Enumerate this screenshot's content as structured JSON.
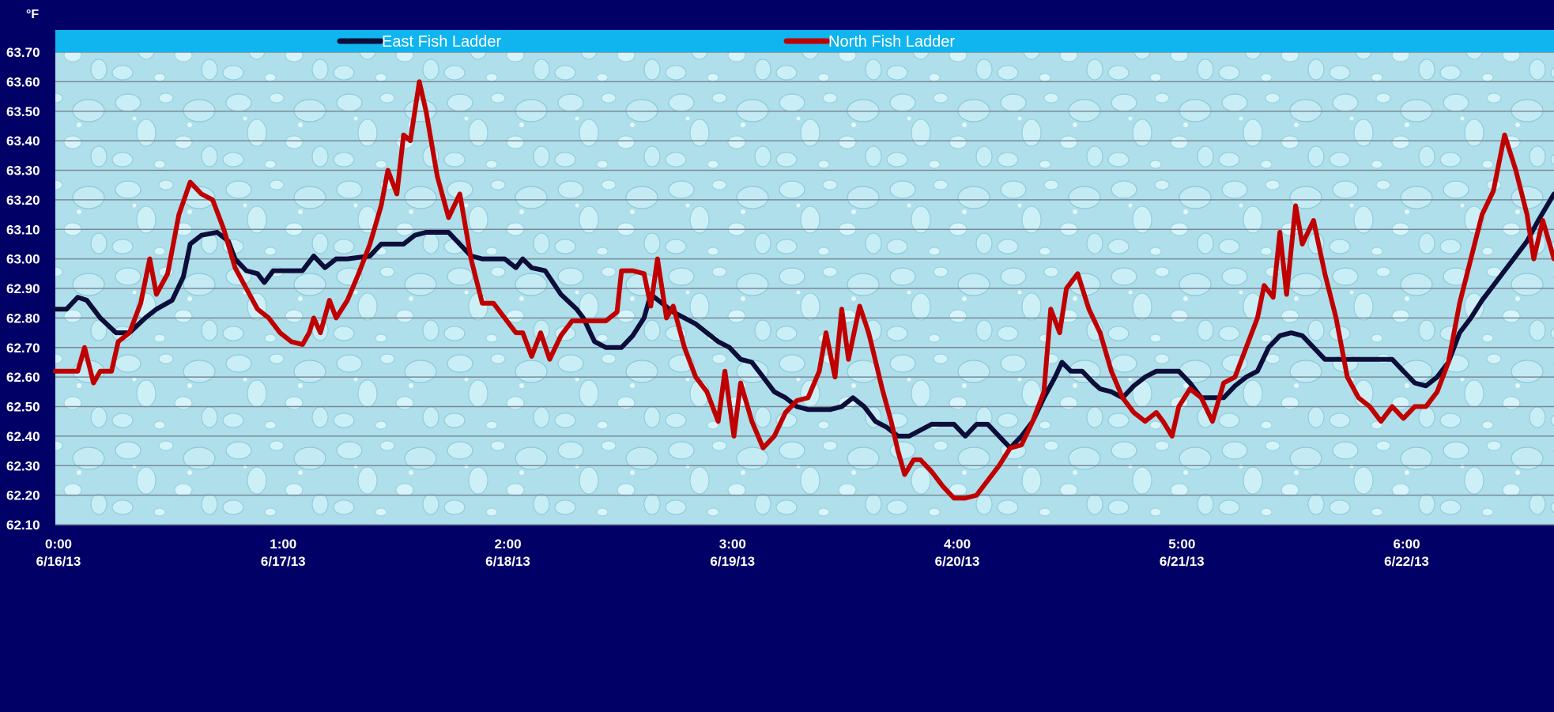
{
  "chart_data": {
    "type": "line",
    "unit_label": "°F",
    "ylim": [
      62.1,
      63.7
    ],
    "y_ticks": [
      "63.70",
      "63.60",
      "63.50",
      "63.40",
      "63.30",
      "63.20",
      "63.10",
      "63.00",
      "62.90",
      "62.80",
      "62.70",
      "62.60",
      "62.50",
      "62.40",
      "62.30",
      "62.20",
      "62.10"
    ],
    "xlim": [
      0,
      6.67
    ],
    "x_ticks": [
      {
        "x": 0,
        "time": "0:00",
        "date": "6/16/13"
      },
      {
        "x": 1,
        "time": "1:00",
        "date": "6/17/13"
      },
      {
        "x": 2,
        "time": "2:00",
        "date": "6/18/13"
      },
      {
        "x": 3,
        "time": "3:00",
        "date": "6/19/13"
      },
      {
        "x": 4,
        "time": "4:00",
        "date": "6/20/13"
      },
      {
        "x": 5,
        "time": "5:00",
        "date": "6/21/13"
      },
      {
        "x": 6,
        "time": "6:00",
        "date": "6/22/13"
      }
    ],
    "grid": true,
    "legend_position": "top",
    "background": "water-droplets",
    "colors": {
      "page_bg": "#000066",
      "legend_bar": "#10b4ee",
      "grid": "#7a8a99",
      "plot_bg": "#aedfea"
    },
    "series": [
      {
        "name": "East Fish Ladder",
        "color": "#0d0d3a",
        "points": [
          [
            0.0,
            62.83
          ],
          [
            0.05,
            62.83
          ],
          [
            0.1,
            62.87
          ],
          [
            0.14,
            62.86
          ],
          [
            0.2,
            62.8
          ],
          [
            0.27,
            62.75
          ],
          [
            0.33,
            62.75
          ],
          [
            0.4,
            62.8
          ],
          [
            0.45,
            62.83
          ],
          [
            0.52,
            62.86
          ],
          [
            0.57,
            62.94
          ],
          [
            0.6,
            63.05
          ],
          [
            0.65,
            63.08
          ],
          [
            0.72,
            63.09
          ],
          [
            0.77,
            63.06
          ],
          [
            0.8,
            63.0
          ],
          [
            0.85,
            62.96
          ],
          [
            0.9,
            62.95
          ],
          [
            0.93,
            62.92
          ],
          [
            0.97,
            62.96
          ],
          [
            1.05,
            62.96
          ],
          [
            1.1,
            62.96
          ],
          [
            1.15,
            63.01
          ],
          [
            1.2,
            62.97
          ],
          [
            1.25,
            63.0
          ],
          [
            1.3,
            63.0
          ],
          [
            1.4,
            63.01
          ],
          [
            1.45,
            63.05
          ],
          [
            1.55,
            63.05
          ],
          [
            1.6,
            63.08
          ],
          [
            1.65,
            63.09
          ],
          [
            1.75,
            63.09
          ],
          [
            1.8,
            63.05
          ],
          [
            1.85,
            63.01
          ],
          [
            1.9,
            63.0
          ],
          [
            2.0,
            63.0
          ],
          [
            2.05,
            62.97
          ],
          [
            2.08,
            63.0
          ],
          [
            2.12,
            62.97
          ],
          [
            2.18,
            62.96
          ],
          [
            2.25,
            62.88
          ],
          [
            2.32,
            62.83
          ],
          [
            2.35,
            62.8
          ],
          [
            2.4,
            62.72
          ],
          [
            2.45,
            62.7
          ],
          [
            2.52,
            62.7
          ],
          [
            2.57,
            62.74
          ],
          [
            2.62,
            62.8
          ],
          [
            2.65,
            62.88
          ],
          [
            2.7,
            62.85
          ],
          [
            2.75,
            62.82
          ],
          [
            2.8,
            62.8
          ],
          [
            2.85,
            62.78
          ],
          [
            2.9,
            62.75
          ],
          [
            2.95,
            62.72
          ],
          [
            3.0,
            62.7
          ],
          [
            3.05,
            62.66
          ],
          [
            3.1,
            62.65
          ],
          [
            3.15,
            62.6
          ],
          [
            3.2,
            62.55
          ],
          [
            3.25,
            62.53
          ],
          [
            3.3,
            62.5
          ],
          [
            3.35,
            62.49
          ],
          [
            3.4,
            62.49
          ],
          [
            3.45,
            62.49
          ],
          [
            3.5,
            62.5
          ],
          [
            3.55,
            62.53
          ],
          [
            3.6,
            62.5
          ],
          [
            3.65,
            62.45
          ],
          [
            3.7,
            62.43
          ],
          [
            3.75,
            62.4
          ],
          [
            3.8,
            62.4
          ],
          [
            3.85,
            62.42
          ],
          [
            3.9,
            62.44
          ],
          [
            3.95,
            62.44
          ],
          [
            4.0,
            62.44
          ],
          [
            4.05,
            62.4
          ],
          [
            4.1,
            62.44
          ],
          [
            4.15,
            62.44
          ],
          [
            4.2,
            62.4
          ],
          [
            4.25,
            62.36
          ],
          [
            4.3,
            62.4
          ],
          [
            4.35,
            62.45
          ],
          [
            4.4,
            62.53
          ],
          [
            4.45,
            62.6
          ],
          [
            4.48,
            62.65
          ],
          [
            4.52,
            62.62
          ],
          [
            4.57,
            62.62
          ],
          [
            4.62,
            62.58
          ],
          [
            4.65,
            62.56
          ],
          [
            4.7,
            62.55
          ],
          [
            4.75,
            62.53
          ],
          [
            4.8,
            62.57
          ],
          [
            4.85,
            62.6
          ],
          [
            4.9,
            62.62
          ],
          [
            4.95,
            62.62
          ],
          [
            5.0,
            62.62
          ],
          [
            5.05,
            62.58
          ],
          [
            5.1,
            62.53
          ],
          [
            5.15,
            62.53
          ],
          [
            5.2,
            62.53
          ],
          [
            5.25,
            62.57
          ],
          [
            5.3,
            62.6
          ],
          [
            5.35,
            62.62
          ],
          [
            5.4,
            62.7
          ],
          [
            5.45,
            62.74
          ],
          [
            5.5,
            62.75
          ],
          [
            5.55,
            62.74
          ],
          [
            5.6,
            62.7
          ],
          [
            5.65,
            62.66
          ],
          [
            5.7,
            62.66
          ],
          [
            5.8,
            62.66
          ],
          [
            5.9,
            62.66
          ],
          [
            5.95,
            62.66
          ],
          [
            6.0,
            62.62
          ],
          [
            6.05,
            62.58
          ],
          [
            6.1,
            62.57
          ],
          [
            6.15,
            62.6
          ],
          [
            6.2,
            62.65
          ],
          [
            6.25,
            62.75
          ],
          [
            6.3,
            62.8
          ],
          [
            6.35,
            62.86
          ],
          [
            6.4,
            62.91
          ],
          [
            6.45,
            62.96
          ],
          [
            6.5,
            63.01
          ],
          [
            6.55,
            63.06
          ],
          [
            6.6,
            63.13
          ],
          [
            6.67,
            63.22
          ]
        ]
      },
      {
        "name": "North Fish Ladder",
        "color": "#c00000",
        "points": [
          [
            0.0,
            62.62
          ],
          [
            0.05,
            62.62
          ],
          [
            0.1,
            62.62
          ],
          [
            0.13,
            62.7
          ],
          [
            0.17,
            62.58
          ],
          [
            0.2,
            62.62
          ],
          [
            0.25,
            62.62
          ],
          [
            0.28,
            62.72
          ],
          [
            0.33,
            62.75
          ],
          [
            0.38,
            62.85
          ],
          [
            0.42,
            63.0
          ],
          [
            0.45,
            62.88
          ],
          [
            0.5,
            62.95
          ],
          [
            0.55,
            63.15
          ],
          [
            0.6,
            63.26
          ],
          [
            0.65,
            63.22
          ],
          [
            0.7,
            63.2
          ],
          [
            0.75,
            63.1
          ],
          [
            0.8,
            62.97
          ],
          [
            0.85,
            62.9
          ],
          [
            0.9,
            62.83
          ],
          [
            0.95,
            62.8
          ],
          [
            1.0,
            62.75
          ],
          [
            1.05,
            62.72
          ],
          [
            1.1,
            62.71
          ],
          [
            1.13,
            62.75
          ],
          [
            1.15,
            62.8
          ],
          [
            1.18,
            62.75
          ],
          [
            1.22,
            62.86
          ],
          [
            1.25,
            62.8
          ],
          [
            1.3,
            62.86
          ],
          [
            1.35,
            62.95
          ],
          [
            1.4,
            63.05
          ],
          [
            1.45,
            63.18
          ],
          [
            1.48,
            63.3
          ],
          [
            1.52,
            63.22
          ],
          [
            1.55,
            63.42
          ],
          [
            1.58,
            63.4
          ],
          [
            1.62,
            63.6
          ],
          [
            1.65,
            63.5
          ],
          [
            1.7,
            63.28
          ],
          [
            1.75,
            63.14
          ],
          [
            1.8,
            63.22
          ],
          [
            1.85,
            63.0
          ],
          [
            1.9,
            62.85
          ],
          [
            1.95,
            62.85
          ],
          [
            2.0,
            62.8
          ],
          [
            2.05,
            62.75
          ],
          [
            2.08,
            62.75
          ],
          [
            2.12,
            62.67
          ],
          [
            2.16,
            62.75
          ],
          [
            2.2,
            62.66
          ],
          [
            2.25,
            62.74
          ],
          [
            2.3,
            62.79
          ],
          [
            2.35,
            62.79
          ],
          [
            2.4,
            62.79
          ],
          [
            2.45,
            62.79
          ],
          [
            2.5,
            62.82
          ],
          [
            2.52,
            62.96
          ],
          [
            2.57,
            62.96
          ],
          [
            2.62,
            62.95
          ],
          [
            2.65,
            62.84
          ],
          [
            2.68,
            63.0
          ],
          [
            2.72,
            62.8
          ],
          [
            2.75,
            62.84
          ],
          [
            2.8,
            62.7
          ],
          [
            2.85,
            62.6
          ],
          [
            2.9,
            62.55
          ],
          [
            2.95,
            62.45
          ],
          [
            2.98,
            62.62
          ],
          [
            3.02,
            62.4
          ],
          [
            3.05,
            62.58
          ],
          [
            3.1,
            62.45
          ],
          [
            3.15,
            62.36
          ],
          [
            3.2,
            62.4
          ],
          [
            3.25,
            62.48
          ],
          [
            3.3,
            62.52
          ],
          [
            3.35,
            62.53
          ],
          [
            3.4,
            62.62
          ],
          [
            3.43,
            62.75
          ],
          [
            3.47,
            62.6
          ],
          [
            3.5,
            62.83
          ],
          [
            3.53,
            62.66
          ],
          [
            3.58,
            62.84
          ],
          [
            3.62,
            62.75
          ],
          [
            3.68,
            62.56
          ],
          [
            3.72,
            62.45
          ],
          [
            3.75,
            62.35
          ],
          [
            3.78,
            62.27
          ],
          [
            3.82,
            62.32
          ],
          [
            3.85,
            62.32
          ],
          [
            3.9,
            62.28
          ],
          [
            3.95,
            62.23
          ],
          [
            4.0,
            62.19
          ],
          [
            4.05,
            62.19
          ],
          [
            4.1,
            62.2
          ],
          [
            4.15,
            62.25
          ],
          [
            4.2,
            62.3
          ],
          [
            4.25,
            62.36
          ],
          [
            4.3,
            62.37
          ],
          [
            4.35,
            62.45
          ],
          [
            4.4,
            62.55
          ],
          [
            4.43,
            62.83
          ],
          [
            4.47,
            62.75
          ],
          [
            4.5,
            62.9
          ],
          [
            4.55,
            62.95
          ],
          [
            4.6,
            62.83
          ],
          [
            4.65,
            62.75
          ],
          [
            4.7,
            62.62
          ],
          [
            4.75,
            62.53
          ],
          [
            4.8,
            62.48
          ],
          [
            4.85,
            62.45
          ],
          [
            4.9,
            62.48
          ],
          [
            4.93,
            62.45
          ],
          [
            4.97,
            62.4
          ],
          [
            5.0,
            62.5
          ],
          [
            5.05,
            62.56
          ],
          [
            5.1,
            62.53
          ],
          [
            5.15,
            62.45
          ],
          [
            5.2,
            62.58
          ],
          [
            5.25,
            62.6
          ],
          [
            5.3,
            62.7
          ],
          [
            5.35,
            62.8
          ],
          [
            5.38,
            62.91
          ],
          [
            5.42,
            62.87
          ],
          [
            5.45,
            63.09
          ],
          [
            5.48,
            62.88
          ],
          [
            5.52,
            63.18
          ],
          [
            5.55,
            63.05
          ],
          [
            5.6,
            63.13
          ],
          [
            5.65,
            62.95
          ],
          [
            5.7,
            62.8
          ],
          [
            5.75,
            62.6
          ],
          [
            5.8,
            62.53
          ],
          [
            5.85,
            62.5
          ],
          [
            5.9,
            62.45
          ],
          [
            5.95,
            62.5
          ],
          [
            6.0,
            62.46
          ],
          [
            6.05,
            62.5
          ],
          [
            6.1,
            62.5
          ],
          [
            6.15,
            62.55
          ],
          [
            6.2,
            62.65
          ],
          [
            6.25,
            62.85
          ],
          [
            6.3,
            63.0
          ],
          [
            6.35,
            63.15
          ],
          [
            6.4,
            63.23
          ],
          [
            6.45,
            63.42
          ],
          [
            6.5,
            63.3
          ],
          [
            6.55,
            63.15
          ],
          [
            6.58,
            63.0
          ],
          [
            6.62,
            63.13
          ],
          [
            6.67,
            63.0
          ]
        ]
      }
    ]
  }
}
